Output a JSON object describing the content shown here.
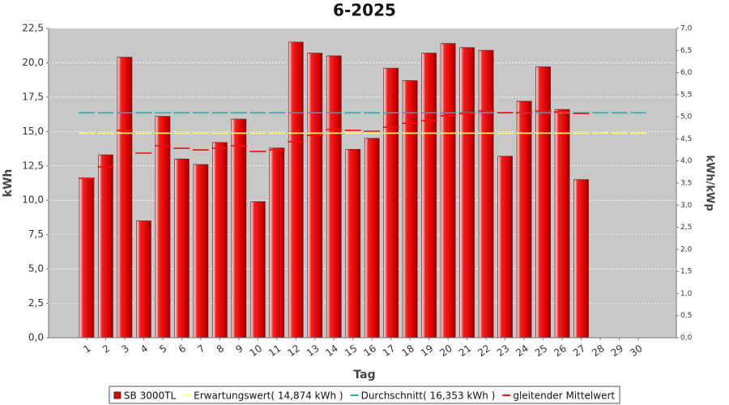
{
  "chart_data": {
    "type": "bar",
    "title": "6-2025",
    "x_label": "Tag",
    "y_label": "kWh",
    "y2_label": "kWh/kWp",
    "categories": [
      "1",
      "2",
      "3",
      "4",
      "5",
      "6",
      "7",
      "8",
      "9",
      "10",
      "11",
      "12",
      "13",
      "14",
      "15",
      "16",
      "17",
      "18",
      "19",
      "20",
      "21",
      "22",
      "23",
      "24",
      "25",
      "26",
      "27",
      "28",
      "29",
      "30"
    ],
    "series": [
      {
        "name": "SB 3000TL",
        "mark": "bar",
        "color": "#dd0000",
        "values": [
          11.6,
          13.3,
          20.4,
          8.5,
          16.1,
          13.0,
          12.6,
          14.2,
          15.9,
          9.9,
          13.8,
          21.5,
          20.7,
          20.5,
          13.7,
          14.5,
          19.6,
          18.7,
          20.7,
          21.4,
          21.1,
          20.9,
          13.2,
          17.2,
          19.7,
          16.6,
          11.5,
          0,
          0,
          0
        ]
      },
      {
        "name": "Erwartungswert( 14,874 kWh )",
        "mark": "dash",
        "color": "#ffff66",
        "values": [
          14.874,
          14.874,
          14.874,
          14.874,
          14.874,
          14.874,
          14.874,
          14.874,
          14.874,
          14.874,
          14.874,
          14.874,
          14.874,
          14.874,
          14.874,
          14.874,
          14.874,
          14.874,
          14.874,
          14.874,
          14.874,
          14.874,
          14.874,
          14.874,
          14.874,
          14.874,
          14.874,
          14.874,
          14.874,
          14.874
        ]
      },
      {
        "name": "Durchschnitt( 16,353 kWh )",
        "mark": "dash",
        "color": "#33aaaa",
        "values": [
          16.353,
          16.353,
          16.353,
          16.353,
          16.353,
          16.353,
          16.353,
          16.353,
          16.353,
          16.353,
          16.353,
          16.353,
          16.353,
          16.353,
          16.353,
          16.353,
          16.353,
          16.353,
          16.353,
          16.353,
          16.353,
          16.353,
          16.353,
          16.353,
          16.353,
          16.353,
          16.353,
          16.353,
          16.353,
          16.353
        ]
      },
      {
        "name": "gleitender Mittelwert",
        "mark": "dash",
        "color": "#ee1111",
        "values": [
          11.6,
          12.43,
          15.08,
          13.43,
          13.96,
          13.78,
          13.66,
          13.78,
          13.96,
          13.55,
          13.66,
          14.25,
          14.72,
          15.14,
          15.08,
          15.02,
          15.31,
          15.6,
          15.78,
          16.14,
          16.31,
          16.49,
          16.37,
          16.37,
          16.49,
          16.43,
          16.31,
          null,
          null,
          null
        ]
      }
    ],
    "ylim": [
      0,
      22.5
    ],
    "yticks": [
      {
        "value": 0,
        "label": "0,0"
      },
      {
        "value": 2.5,
        "label": "2,5"
      },
      {
        "value": 5,
        "label": "5,0"
      },
      {
        "value": 7.5,
        "label": "7,5"
      },
      {
        "value": 10,
        "label": "10,0"
      },
      {
        "value": 12.5,
        "label": "12,5"
      },
      {
        "value": 15,
        "label": "15,0"
      },
      {
        "value": 17.5,
        "label": "17,5"
      },
      {
        "value": 20,
        "label": "20,0"
      },
      {
        "value": 22.5,
        "label": "22,5"
      }
    ],
    "y2lim": [
      0,
      7
    ],
    "y2ticks": [
      {
        "value": 0,
        "label": "0,0"
      },
      {
        "value": 0.5,
        "label": "0,5"
      },
      {
        "value": 1,
        "label": "1,0"
      },
      {
        "value": 1.5,
        "label": "1,5"
      },
      {
        "value": 2,
        "label": "2,0"
      },
      {
        "value": 2.5,
        "label": "2,5"
      },
      {
        "value": 3,
        "label": "3,0"
      },
      {
        "value": 3.5,
        "label": "3,5"
      },
      {
        "value": 4,
        "label": "4,0"
      },
      {
        "value": 4.5,
        "label": "4,5"
      },
      {
        "value": 5,
        "label": "5,0"
      },
      {
        "value": 5.5,
        "label": "5,5"
      },
      {
        "value": 6,
        "label": "6,0"
      },
      {
        "value": 6.5,
        "label": "6,5"
      },
      {
        "value": 7,
        "label": "7,0"
      }
    ],
    "grid": true,
    "legend": "bottom"
  }
}
